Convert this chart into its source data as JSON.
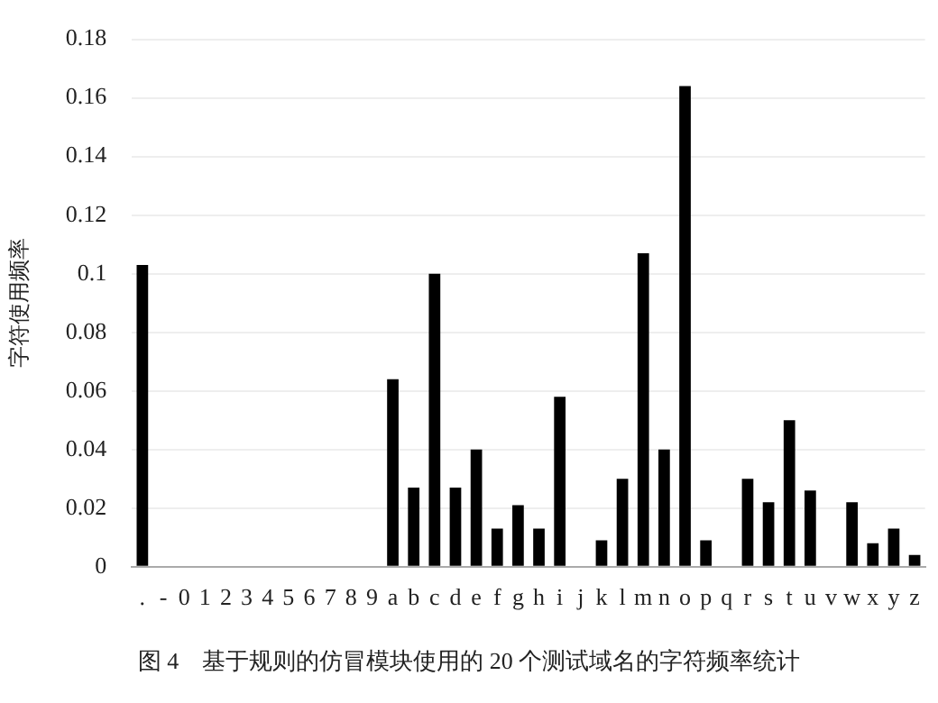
{
  "chart_data": {
    "type": "bar",
    "ylabel": "字符使用频率",
    "annotations": [
      "图 4　基于规则的仿冒模块使用的 20 个测试域名的字符频率统计"
    ],
    "categories": [
      ".",
      "-",
      "0",
      "1",
      "2",
      "3",
      "4",
      "5",
      "6",
      "7",
      "8",
      "9",
      "a",
      "b",
      "c",
      "d",
      "e",
      "f",
      "g",
      "h",
      "i",
      "j",
      "k",
      "l",
      "m",
      "n",
      "o",
      "p",
      "q",
      "r",
      "s",
      "t",
      "u",
      "v",
      "w",
      "x",
      "y",
      "z"
    ],
    "values": [
      0.103,
      0,
      0,
      0,
      0,
      0,
      0,
      0,
      0,
      0,
      0,
      0,
      0.064,
      0.027,
      0.1,
      0.027,
      0.04,
      0.013,
      0.021,
      0.013,
      0.058,
      0,
      0.009,
      0.03,
      0.107,
      0.04,
      0.164,
      0.009,
      0,
      0.03,
      0.022,
      0.05,
      0.026,
      0,
      0.022,
      0.008,
      0.013,
      0.004
    ],
    "color": "#000000",
    "ylim": [
      0,
      0.18
    ],
    "yticks": [
      0,
      0.02,
      0.04,
      0.06,
      0.08,
      0.1,
      0.12,
      0.14,
      0.16,
      0.18
    ],
    "grid": "y"
  }
}
